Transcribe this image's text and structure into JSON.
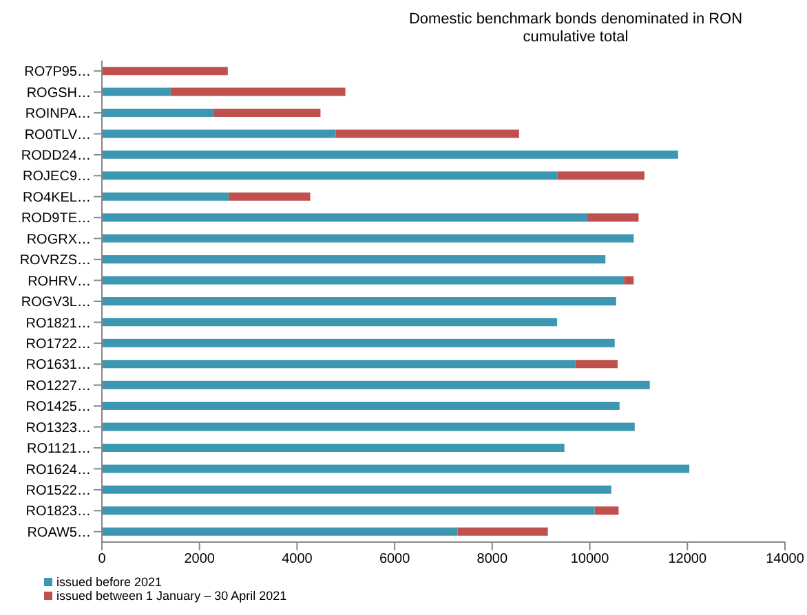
{
  "chart_data": {
    "type": "bar",
    "orientation": "horizontal",
    "stacked": true,
    "title": "Domestic benchmark bonds denominated in RON\ncumulative total",
    "categories": [
      "RO7P95…",
      "ROGSH…",
      "ROINPA…",
      "RO0TLV…",
      "RODD24…",
      "ROJEC9…",
      "RO4KEL…",
      "ROD9TE…",
      "ROGRX…",
      "ROVRZS…",
      "ROHRV…",
      "ROGV3L…",
      "RO1821…",
      "RO1722…",
      "RO1631…",
      "RO1227…",
      "RO1425…",
      "RO1323…",
      "RO1121…",
      "RO1624…",
      "RO1522…",
      "RO1823…",
      "ROAW5…"
    ],
    "series": [
      {
        "name": "issued before 2021",
        "color": "#3e97b0",
        "values": [
          0,
          1410,
          2300,
          4790,
          11810,
          9340,
          2600,
          9950,
          10900,
          10320,
          10700,
          10540,
          9330,
          10510,
          9700,
          11230,
          10610,
          10920,
          9480,
          12040,
          10440,
          10100,
          7290
        ]
      },
      {
        "name": "issued between 1 January – 30 April 2021",
        "color": "#c0504d",
        "values": [
          2580,
          3580,
          2180,
          3760,
          0,
          1780,
          1670,
          1050,
          0,
          0,
          200,
          0,
          0,
          0,
          870,
          0,
          0,
          0,
          0,
          0,
          0,
          490,
          1850
        ]
      }
    ],
    "xlim": [
      0,
      14000
    ],
    "xticks": [
      0,
      2000,
      4000,
      6000,
      8000,
      10000,
      12000,
      14000
    ],
    "legend": "bottom left"
  }
}
